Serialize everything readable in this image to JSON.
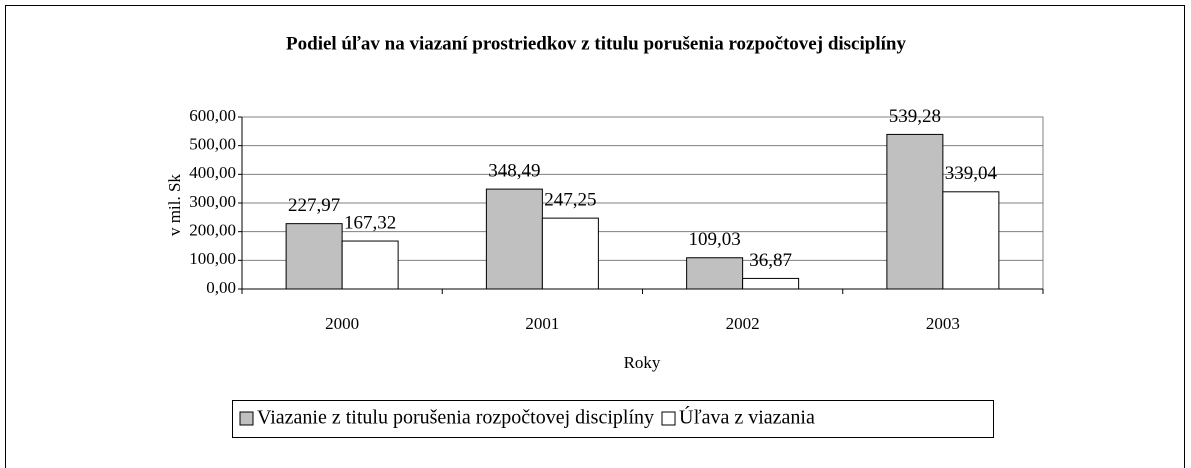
{
  "chart_data": {
    "type": "bar",
    "title": "Podiel úľav na viazaní prostriedkov z titulu porušenia rozpočtovej disciplíny",
    "x_label": "Roky",
    "y_label": "v mil. Sk",
    "categories": [
      "2000",
      "2001",
      "2002",
      "2003"
    ],
    "series": [
      {
        "name": "Viazanie z titulu porušenia rozpočtovej disciplíny",
        "color": "#c0c0c0",
        "values": [
          227.97,
          348.49,
          109.03,
          539.28
        ],
        "value_labels": [
          "227,97",
          "348,49",
          "109,03",
          "539,28"
        ]
      },
      {
        "name": "Úľava z viazania",
        "color": "#ffffff",
        "values": [
          167.32,
          247.25,
          36.87,
          339.04
        ],
        "value_labels": [
          "167,32",
          "247,25",
          "36,87",
          "339,04"
        ]
      }
    ],
    "ylim": [
      0,
      600
    ],
    "yticks": [
      {
        "value": 0,
        "label": "0,00"
      },
      {
        "value": 100,
        "label": "100,00"
      },
      {
        "value": 200,
        "label": "200,00"
      },
      {
        "value": 300,
        "label": "300,00"
      },
      {
        "value": 400,
        "label": "400,00"
      },
      {
        "value": 500,
        "label": "500,00"
      },
      {
        "value": 600,
        "label": "600,00"
      }
    ],
    "grid": true,
    "legend": "bottom"
  }
}
